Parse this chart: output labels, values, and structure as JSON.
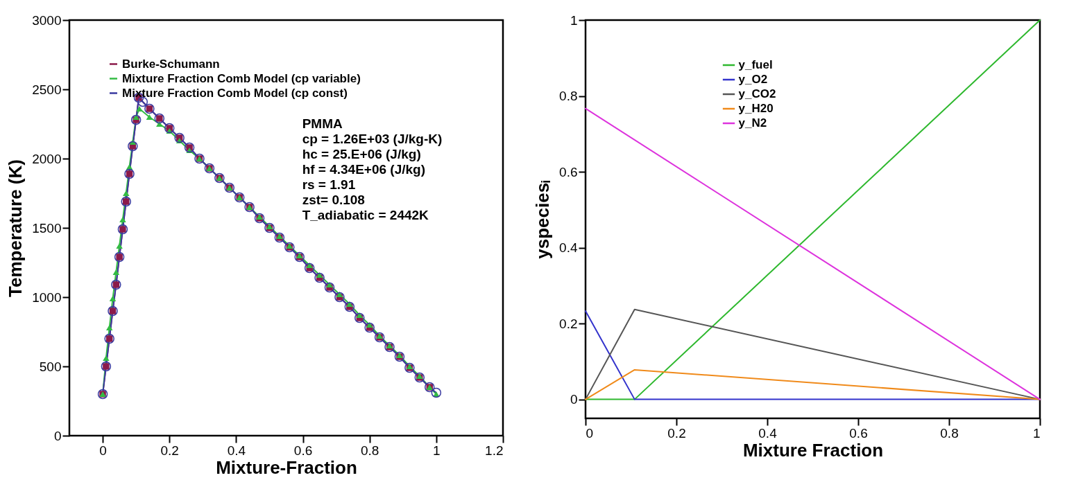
{
  "chart_data": [
    {
      "type": "line",
      "xlabel": "Mixture-Fraction",
      "ylabel": "Temperature (K)",
      "xlim": [
        -0.1,
        1.2
      ],
      "xticks": [
        0,
        0.2,
        0.4,
        0.6,
        0.8,
        1,
        1.2
      ],
      "ylim": [
        0,
        3000
      ],
      "yticks": [
        0,
        500,
        1000,
        1500,
        2000,
        2500,
        3000
      ],
      "legend": "top left",
      "grid": false,
      "annotations": [
        "PMMA",
        "cp = 1.26E+03  (J/kg-K)",
        "hc = 25.E+06    (J/kg)",
        "hf =  4.34E+06  (J/kg)",
        "rs = 1.91",
        "zst= 0.108",
        "T_adiabatic = 2442K"
      ],
      "series": [
        {
          "name": "Burke-Schumann",
          "color": "#8b1a4a",
          "marker": "square",
          "x": [
            0,
            0.01,
            0.02,
            0.03,
            0.04,
            0.05,
            0.06,
            0.07,
            0.08,
            0.09,
            0.1,
            0.108,
            0.14,
            0.17,
            0.2,
            0.23,
            0.26,
            0.29,
            0.32,
            0.35,
            0.38,
            0.41,
            0.44,
            0.47,
            0.5,
            0.53,
            0.56,
            0.59,
            0.62,
            0.65,
            0.68,
            0.71,
            0.74,
            0.77,
            0.8,
            0.83,
            0.86,
            0.89,
            0.92,
            0.95,
            0.98
          ],
          "values": [
            300,
            500,
            700,
            900,
            1090,
            1290,
            1490,
            1690,
            1890,
            2090,
            2280,
            2440,
            2360,
            2290,
            2220,
            2150,
            2080,
            2000,
            1930,
            1860,
            1790,
            1720,
            1650,
            1570,
            1500,
            1430,
            1360,
            1290,
            1210,
            1140,
            1070,
            1000,
            930,
            850,
            780,
            710,
            640,
            570,
            490,
            420,
            350
          ]
        },
        {
          "name": "Mixture Fraction Comb Model (cp variable)",
          "color": "#33bb44",
          "marker": "triangle",
          "x": [
            0,
            0.01,
            0.02,
            0.03,
            0.04,
            0.05,
            0.06,
            0.07,
            0.08,
            0.09,
            0.1,
            0.11,
            0.14,
            0.17,
            0.2,
            0.23,
            0.26,
            0.29,
            0.32,
            0.35,
            0.38,
            0.41,
            0.44,
            0.47,
            0.5,
            0.53,
            0.56,
            0.59,
            0.62,
            0.65,
            0.68,
            0.71,
            0.74,
            0.77,
            0.8,
            0.83,
            0.86,
            0.89,
            0.92,
            0.95,
            0.98,
            1
          ],
          "values": [
            300,
            560,
            780,
            990,
            1180,
            1370,
            1560,
            1750,
            1940,
            2120,
            2300,
            2360,
            2300,
            2250,
            2200,
            2130,
            2060,
            2000,
            1930,
            1860,
            1790,
            1720,
            1650,
            1580,
            1510,
            1440,
            1370,
            1300,
            1230,
            1160,
            1090,
            1020,
            950,
            870,
            800,
            720,
            650,
            580,
            500,
            430,
            350,
            300
          ]
        },
        {
          "name": "Mixture Fraction Comb Model (cp const)",
          "color": "#3a3aa0",
          "marker": "circle",
          "x": [
            0,
            0.01,
            0.02,
            0.03,
            0.04,
            0.05,
            0.06,
            0.07,
            0.08,
            0.09,
            0.1,
            0.108,
            0.12,
            0.14,
            0.17,
            0.2,
            0.23,
            0.26,
            0.29,
            0.32,
            0.35,
            0.38,
            0.41,
            0.44,
            0.47,
            0.5,
            0.53,
            0.56,
            0.59,
            0.62,
            0.65,
            0.68,
            0.71,
            0.74,
            0.77,
            0.8,
            0.83,
            0.86,
            0.89,
            0.92,
            0.95,
            0.98,
            1
          ],
          "values": [
            300,
            500,
            700,
            900,
            1090,
            1290,
            1490,
            1690,
            1890,
            2090,
            2280,
            2440,
            2410,
            2360,
            2290,
            2220,
            2150,
            2080,
            2000,
            1930,
            1860,
            1790,
            1720,
            1650,
            1570,
            1500,
            1430,
            1360,
            1290,
            1210,
            1140,
            1070,
            1000,
            930,
            850,
            780,
            710,
            640,
            570,
            490,
            420,
            350,
            310
          ]
        }
      ]
    },
    {
      "type": "line",
      "xlabel": "Mixture Fraction",
      "ylabel": "yspeciesᵢ",
      "xlim": [
        0,
        1
      ],
      "xticks": [
        0,
        0.2,
        0.4,
        0.6,
        0.8,
        1
      ],
      "ylim": [
        -0.05,
        1
      ],
      "yticks": [
        0,
        0.2,
        0.4,
        0.6,
        0.8,
        1
      ],
      "legend": "top",
      "grid": false,
      "series": [
        {
          "name": "y_fuel",
          "color": "#2eb82e",
          "x": [
            0,
            0.108,
            1
          ],
          "values": [
            0,
            0,
            1
          ]
        },
        {
          "name": "y_O2",
          "color": "#3333cc",
          "x": [
            0,
            0.108,
            1
          ],
          "values": [
            0.233,
            0,
            0
          ]
        },
        {
          "name": "y_CO2",
          "color": "#555555",
          "x": [
            0,
            0.108,
            1
          ],
          "values": [
            0,
            0.237,
            0
          ]
        },
        {
          "name": "y_H20",
          "color": "#f08a1a",
          "x": [
            0,
            0.108,
            1
          ],
          "values": [
            0,
            0.078,
            0
          ]
        },
        {
          "name": "y_N2",
          "color": "#dd33dd",
          "x": [
            0,
            1
          ],
          "values": [
            0.767,
            0
          ]
        }
      ]
    }
  ]
}
